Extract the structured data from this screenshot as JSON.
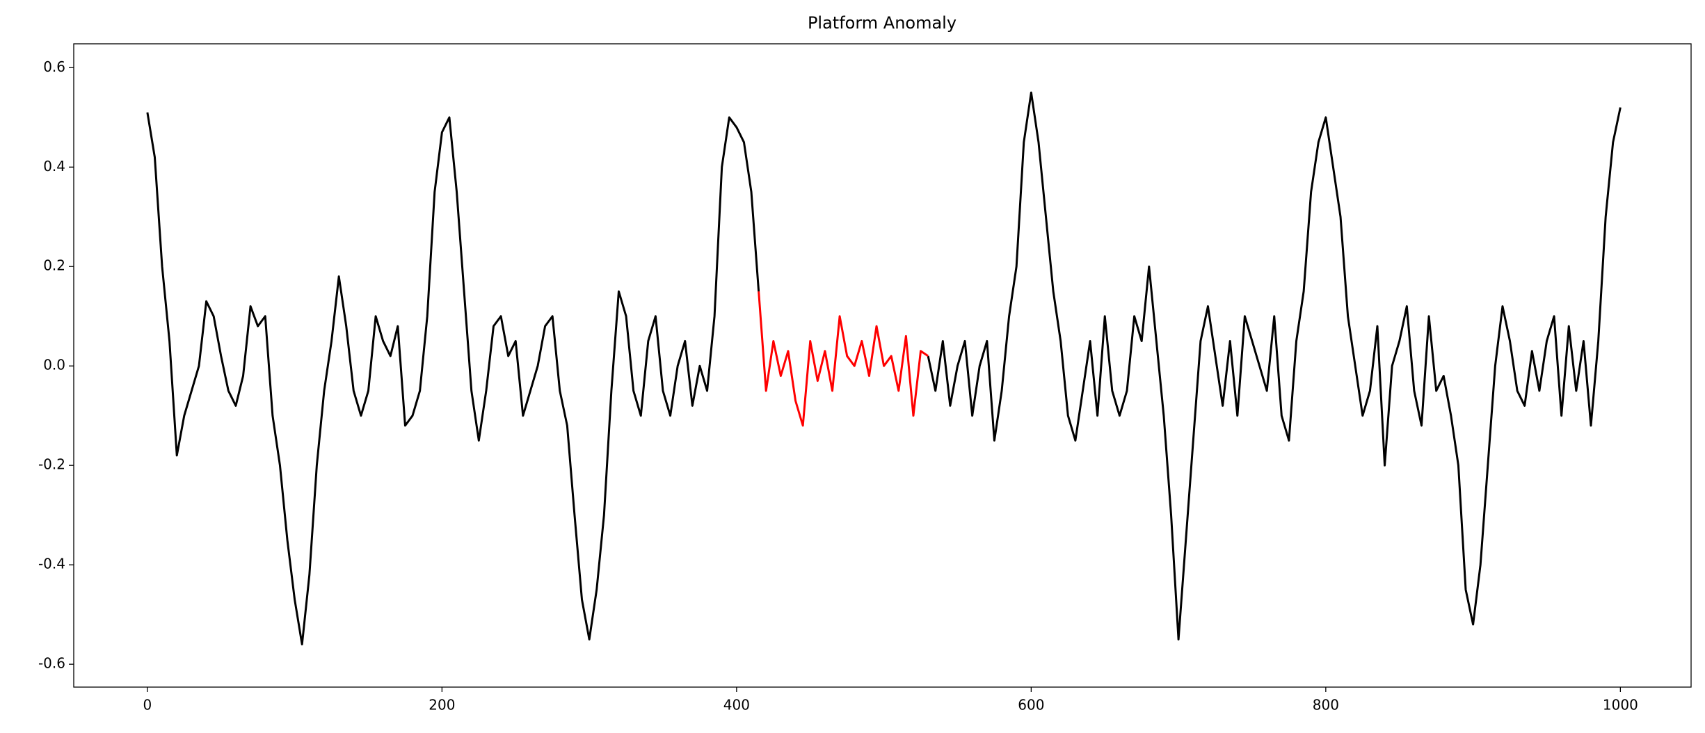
{
  "chart_data": {
    "type": "line",
    "title": "Platform Anomaly",
    "series": [
      {
        "color": "#000000",
        "x": [
          0,
          5,
          10,
          15,
          20,
          25,
          30,
          35,
          40,
          45,
          50,
          55,
          60,
          65,
          70,
          75,
          80,
          85,
          90,
          95,
          100,
          105,
          110,
          115,
          120,
          125,
          130,
          135,
          140,
          145,
          150,
          155,
          160,
          165,
          170,
          175,
          180,
          185,
          190,
          195,
          200,
          205,
          210,
          215,
          220,
          225,
          230,
          235,
          240,
          245,
          250,
          255,
          260,
          265,
          270,
          275,
          280,
          285,
          290,
          295,
          300,
          305,
          310,
          315,
          320,
          325,
          330,
          335,
          340,
          345,
          350,
          355,
          360,
          365,
          370,
          375,
          380,
          385,
          390,
          395,
          400,
          405,
          410,
          415,
          420,
          425,
          430,
          435,
          440,
          445,
          450,
          455,
          460,
          465,
          470,
          475,
          480,
          485,
          490,
          495,
          500,
          505,
          510,
          515,
          520,
          525,
          530,
          535,
          540,
          545,
          550,
          555,
          560,
          565,
          570,
          575,
          580,
          585,
          590,
          595,
          600,
          605,
          610,
          615,
          620,
          625,
          630,
          635,
          640,
          645,
          650,
          655,
          660,
          665,
          670,
          675,
          680,
          685,
          690,
          695,
          700,
          705,
          710,
          715,
          720,
          725,
          730,
          735,
          740,
          745,
          750,
          755,
          760,
          765,
          770,
          775,
          780,
          785,
          790,
          795,
          800,
          805,
          810,
          815,
          820,
          825,
          830,
          835,
          840,
          845,
          850,
          855,
          860,
          865,
          870,
          875,
          880,
          885,
          890,
          895,
          900,
          905,
          910,
          915,
          920,
          925,
          930,
          935,
          940,
          945,
          950,
          955,
          960,
          965,
          970,
          975,
          980,
          985,
          990,
          995,
          1000
        ],
        "values": [
          0.51,
          0.42,
          0.2,
          0.05,
          -0.18,
          -0.1,
          -0.05,
          0.0,
          0.13,
          0.1,
          0.02,
          -0.05,
          -0.08,
          -0.02,
          0.12,
          0.08,
          0.1,
          -0.1,
          -0.2,
          -0.35,
          -0.47,
          -0.56,
          -0.42,
          -0.2,
          -0.05,
          0.05,
          0.18,
          0.08,
          -0.05,
          -0.1,
          -0.05,
          0.1,
          0.05,
          0.02,
          0.08,
          -0.12,
          -0.1,
          -0.05,
          0.1,
          0.35,
          0.47,
          0.5,
          0.35,
          0.15,
          -0.05,
          -0.15,
          -0.05,
          0.08,
          0.1,
          0.02,
          0.05,
          -0.1,
          -0.05,
          0.0,
          0.08,
          0.1,
          -0.05,
          -0.12,
          -0.3,
          -0.47,
          -0.55,
          -0.45,
          -0.3,
          -0.05,
          0.15,
          0.1,
          -0.05,
          -0.1,
          0.05,
          0.1,
          -0.05,
          -0.1,
          0.0,
          0.05,
          -0.08,
          0.0,
          -0.05,
          0.1,
          0.4,
          0.5,
          0.48,
          0.45,
          0.35,
          0.15,
          null,
          null,
          null,
          null,
          null,
          null,
          null,
          null,
          null,
          null,
          null,
          null,
          null,
          null,
          null,
          null,
          null,
          null,
          null,
          null,
          null,
          null,
          0.02,
          -0.05,
          0.05,
          -0.08,
          0.0,
          0.05,
          -0.1,
          0.0,
          0.05,
          -0.15,
          -0.05,
          0.1,
          0.2,
          0.45,
          0.55,
          0.45,
          0.3,
          0.15,
          0.05,
          -0.1,
          -0.15,
          -0.05,
          0.05,
          -0.1,
          0.1,
          -0.05,
          -0.1,
          -0.05,
          0.1,
          0.05,
          0.2,
          0.05,
          -0.1,
          -0.3,
          -0.55,
          -0.35,
          -0.15,
          0.05,
          0.12,
          0.02,
          -0.08,
          0.05,
          -0.1,
          0.1,
          0.05,
          0.0,
          -0.05,
          0.1,
          -0.1,
          -0.15,
          0.05,
          0.15,
          0.35,
          0.45,
          0.5,
          0.4,
          0.3,
          0.1,
          0.0,
          -0.1,
          -0.05,
          0.08,
          -0.2,
          0.0,
          0.05,
          0.12,
          -0.05,
          -0.12,
          0.1,
          -0.05,
          -0.02,
          -0.1,
          -0.2,
          -0.45,
          -0.52,
          -0.4,
          -0.2,
          0.0,
          0.12,
          0.05,
          -0.05,
          -0.08,
          0.03,
          -0.05,
          0.05,
          0.1,
          -0.1,
          0.08,
          -0.05,
          0.05,
          -0.12,
          0.05,
          0.3,
          0.45,
          0.52
        ]
      },
      {
        "color": "#ff0000",
        "x": [
          415,
          420,
          425,
          430,
          435,
          440,
          445,
          450,
          455,
          460,
          465,
          470,
          475,
          480,
          485,
          490,
          495,
          500,
          505,
          510,
          515,
          520,
          525,
          530
        ],
        "values": [
          0.15,
          -0.05,
          0.05,
          -0.02,
          0.03,
          -0.07,
          -0.12,
          0.05,
          -0.03,
          0.03,
          -0.05,
          0.1,
          0.02,
          0.0,
          0.05,
          -0.02,
          0.08,
          0.0,
          0.02,
          -0.05,
          0.06,
          -0.1,
          0.03,
          0.02
        ]
      }
    ],
    "xlim": [
      -50,
      1048
    ],
    "ylim": [
      -0.646,
      0.648
    ],
    "xticks": [
      0,
      200,
      400,
      600,
      800,
      1000
    ],
    "yticks": [
      -0.6,
      -0.4,
      -0.2,
      {
        "value": 0,
        "label": "0.0"
      },
      0.2,
      0.4,
      0.6
    ]
  }
}
